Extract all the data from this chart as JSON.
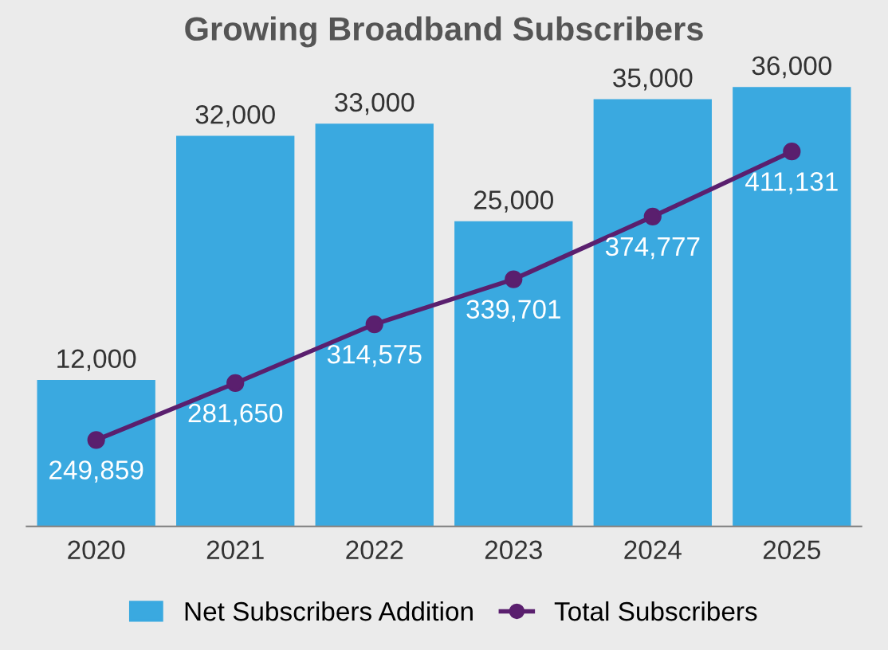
{
  "chart_data": {
    "type": "bar",
    "title": "Growing Broadband Subscribers",
    "categories": [
      "2020",
      "2021",
      "2022",
      "2023",
      "2024",
      "2025"
    ],
    "series": [
      {
        "name": "Net Subscribers Addition",
        "color": "#3aa9e0",
        "values": [
          12000,
          32000,
          33000,
          25000,
          35000,
          36000
        ],
        "value_labels": [
          "12,000",
          "32,000",
          "33,000",
          "25,000",
          "35,000",
          "36,000"
        ]
      },
      {
        "name": "Total Subscribers",
        "type": "line",
        "axis": "y2",
        "color": "#5a1f6e",
        "marker": "circle",
        "values": [
          249859,
          281650,
          314575,
          339701,
          374777,
          411131
        ],
        "value_labels": [
          "249,859",
          "281,650",
          "314,575",
          "339,701",
          "374,777",
          "411,131"
        ]
      }
    ],
    "tick_labels": "x",
    "legend": "bottom"
  }
}
